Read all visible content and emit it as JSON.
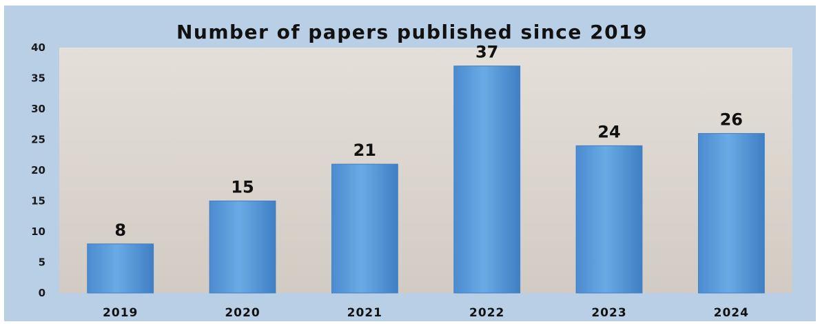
{
  "chart_data": {
    "type": "bar",
    "title": "Number of papers published since 2019",
    "categories": [
      "2019",
      "2020",
      "2021",
      "2022",
      "2023",
      "2024"
    ],
    "values": [
      8,
      15,
      21,
      37,
      24,
      26
    ],
    "data_labels": [
      "8",
      "15",
      "21",
      "37",
      "24",
      "26"
    ],
    "xlabel": "",
    "ylabel": "",
    "ylim": [
      0,
      40
    ],
    "yticks": [
      "0",
      "5",
      "10",
      "15",
      "20",
      "25",
      "30",
      "35",
      "40"
    ],
    "grid": false,
    "legend": "none",
    "colors": {
      "frame_background": "#b9cfe6",
      "plot_background": "#d9d3cc",
      "bar": "#5f9fdc",
      "bar_dark": "#3f7fc4"
    }
  }
}
